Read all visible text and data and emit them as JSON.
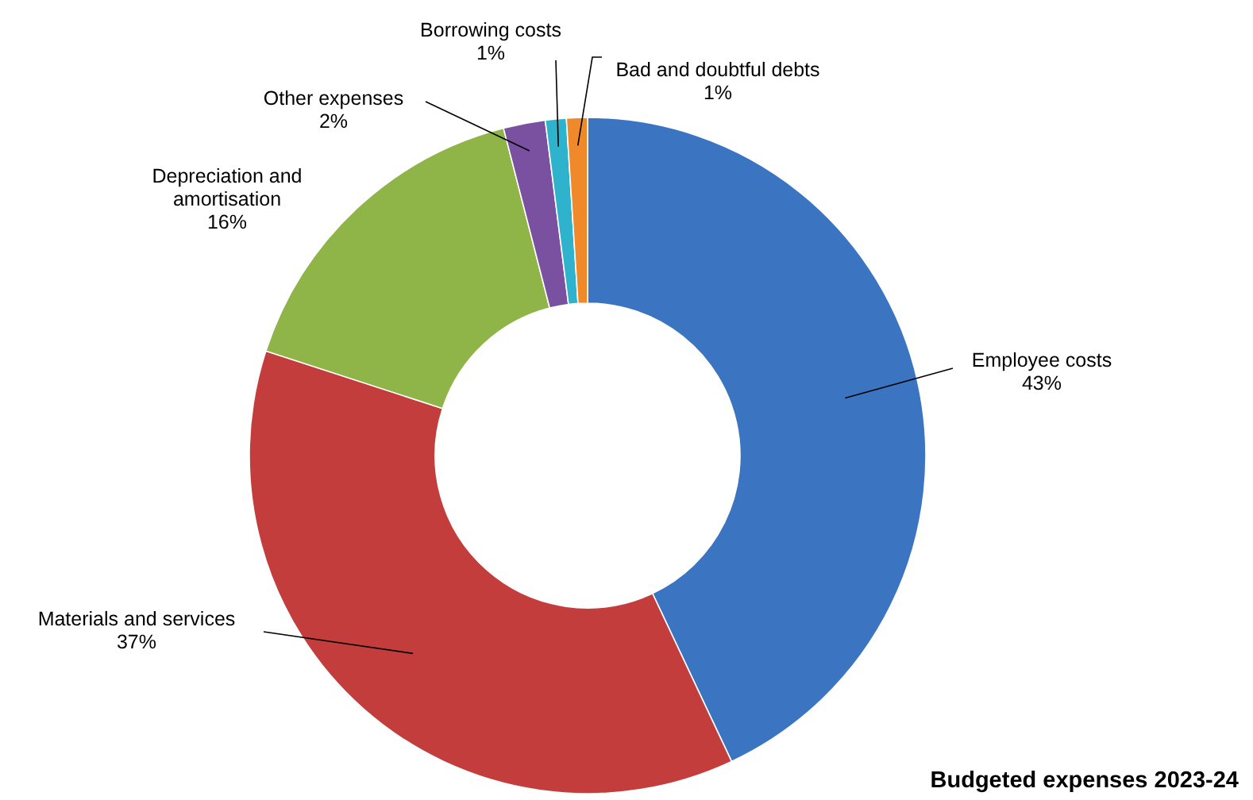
{
  "chart_data": {
    "type": "donut",
    "title": "Budgeted expenses 2023-24",
    "categories": [
      "Employee costs",
      "Materials and services",
      "Depreciation and amortisation",
      "Other expenses",
      "Borrowing costs",
      "Bad and doubtful debts"
    ],
    "values": [
      43,
      37,
      16,
      2,
      1,
      1
    ],
    "colors": [
      "#3b74c0",
      "#c23d3b",
      "#8fb447",
      "#7a50a0",
      "#2fb3cc",
      "#f0892a"
    ],
    "value_labels": [
      "43%",
      "37%",
      "16%",
      "2%",
      "1%",
      "1%"
    ]
  }
}
